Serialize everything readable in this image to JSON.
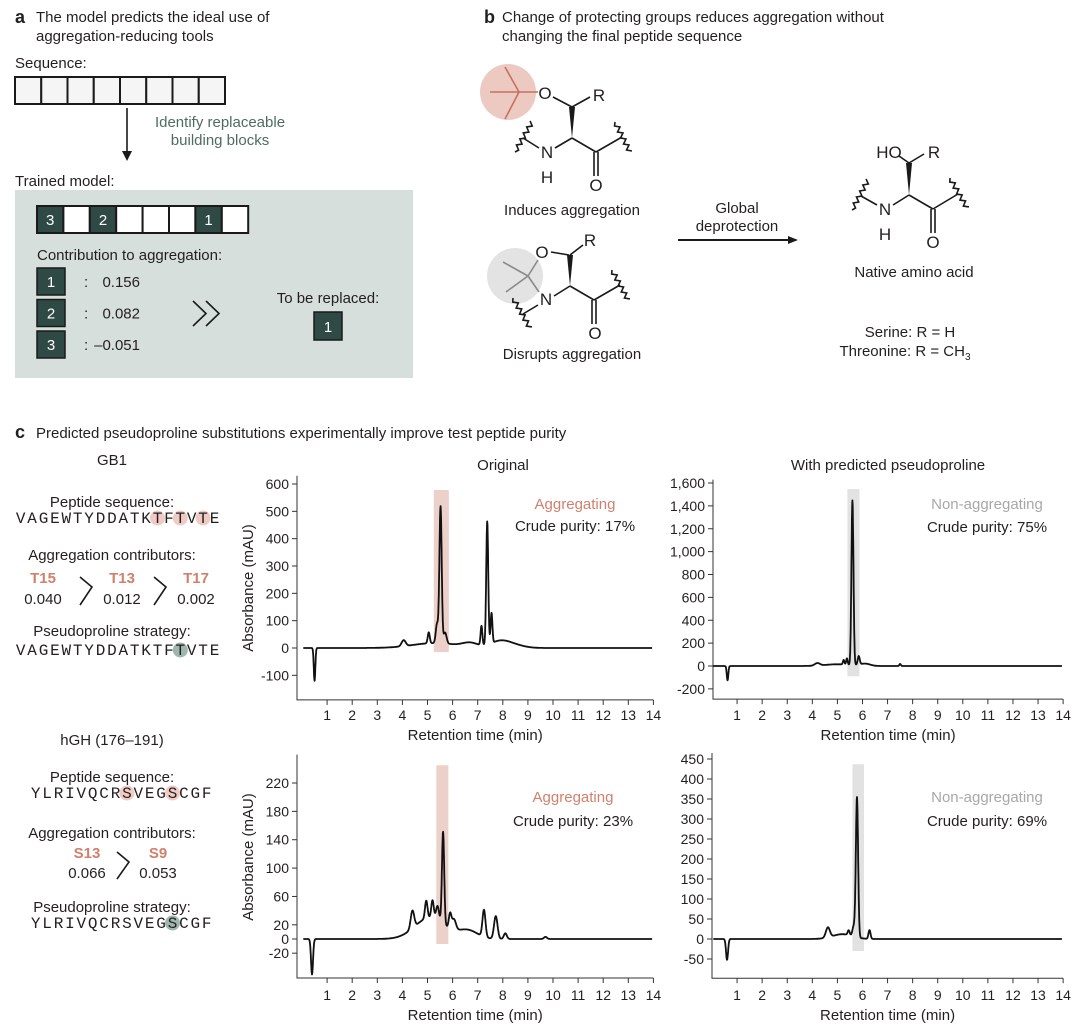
{
  "panel_a": {
    "letter": "a",
    "title_line1": "The model predicts the ideal use of",
    "title_line2": "aggregation-reducing tools",
    "sequence_label": "Sequence:",
    "arrow_label_line1": "Identify replaceable",
    "arrow_label_line2": "building blocks",
    "trained_label": "Trained model:",
    "trained_boxes": [
      "3",
      "",
      "2",
      "",
      "",
      "",
      "1",
      ""
    ],
    "contribution_label": "Contribution to aggregation:",
    "contributions": [
      {
        "id": "1",
        "value": "0.156"
      },
      {
        "id": "2",
        "value": "0.082"
      },
      {
        "id": "3",
        "value": "–0.051"
      }
    ],
    "colon": ":",
    "replace_label": "To be replaced:",
    "replace_id": "1",
    "box_color": "#2f4a44",
    "panel_bg": "#d7dfdd"
  },
  "panel_b": {
    "letter": "b",
    "title_line1": "Change of protecting groups reduces aggregation without",
    "title_line2": "changing the final peptide sequence",
    "induces_label": "Induces aggregation",
    "disrupts_label": "Disrupts aggregation",
    "arrow_line1": "Global",
    "arrow_line2": "deprotection",
    "native_label": "Native amino acid",
    "serine": "Serine: R = H",
    "threonine": "Threonine: R = CH",
    "threonine_sub": "3",
    "atoms": {
      "O": "O",
      "R": "R",
      "N": "N",
      "H": "H",
      "HO": "HO"
    },
    "colors": {
      "tbu": "#eccac2",
      "pseudoproline": "#e3e3e3"
    }
  },
  "panel_c": {
    "letter": "c",
    "title": "Predicted pseudoproline substitutions experimentally improve test peptide purity",
    "col_original": "Original",
    "col_predicted": "With predicted pseudoproline",
    "peptides": [
      {
        "name": "GB1",
        "seq_label": "Peptide sequence:",
        "sequence": "VAGEWTYDDATKTFTVTE",
        "highlight_positions": [
          13,
          15,
          17
        ],
        "contrib_label": "Aggregation contributors:",
        "contributors": [
          {
            "residue": "T15",
            "value": "0.040"
          },
          {
            "residue": "T13",
            "value": "0.012"
          },
          {
            "residue": "T17",
            "value": "0.002"
          }
        ],
        "strategy_label": "Pseudoproline strategy:",
        "strategy_sequence": "VAGEWTYDDATKTFTVTE",
        "strategy_positions": [
          15
        ]
      },
      {
        "name": "hGH (176–191)",
        "seq_label": "Peptide sequence:",
        "sequence": "YLRIVQCRSVEGSCGF",
        "highlight_positions": [
          9,
          13
        ],
        "contrib_label": "Aggregation contributors:",
        "contributors": [
          {
            "residue": "S13",
            "value": "0.066"
          },
          {
            "residue": "S9",
            "value": "0.053"
          }
        ],
        "strategy_label": "Pseudoproline strategy:",
        "strategy_sequence": "YLRIVQCRSVEGSCGF",
        "strategy_positions": [
          13
        ]
      }
    ],
    "colors": {
      "aggregating": "#d0806c",
      "non_aggregating": "#a8a8a8",
      "highlight_pink": "#efcbc3",
      "highlight_green": "#9fb5ad",
      "band_pink": "#ecd0ca",
      "band_gray": "#e2e2e2"
    }
  },
  "chart_data": [
    {
      "type": "line",
      "title": "Original",
      "peptide": "GB1",
      "xlabel": "Retention time (min)",
      "ylabel": "Absorbance (mAU)",
      "xlim": [
        0,
        14
      ],
      "ylim": [
        -190,
        630
      ],
      "xticks": [
        "1",
        "2",
        "3",
        "4",
        "5",
        "6",
        "7",
        "8",
        "9",
        "10",
        "11",
        "12",
        "13",
        "14"
      ],
      "yticks": [
        -100,
        0,
        100,
        200,
        300,
        400,
        500,
        600
      ],
      "ytick_labels": [
        "-100",
        "0",
        "100",
        "200",
        "300",
        "400",
        "500",
        "600"
      ],
      "status": "Aggregating",
      "purity": "Crude purity: 17%",
      "highlight": {
        "x": [
          5.25,
          5.85
        ],
        "y": [
          -15,
          578
        ],
        "color": "pink"
      },
      "peaks_rt_height_width": [
        [
          0.5,
          -120,
          0.03
        ],
        [
          4.05,
          22,
          0.08
        ],
        [
          5.3,
          18,
          0.9
        ],
        [
          5.05,
          40,
          0.04
        ],
        [
          5.38,
          70,
          0.05
        ],
        [
          5.52,
          500,
          0.045
        ],
        [
          5.7,
          40,
          0.06
        ],
        [
          6.7,
          15,
          0.3
        ],
        [
          7.15,
          70,
          0.035
        ],
        [
          7.38,
          450,
          0.04
        ],
        [
          7.55,
          110,
          0.035
        ],
        [
          7.9,
          25,
          0.4
        ],
        [
          8.5,
          8,
          0.4
        ]
      ]
    },
    {
      "type": "line",
      "title": "With predicted pseudoproline",
      "peptide": "GB1",
      "xlabel": "Retention time (min)",
      "ylabel": "",
      "xlim": [
        0,
        14
      ],
      "ylim": [
        -290,
        1630
      ],
      "xticks": [
        "1",
        "2",
        "3",
        "4",
        "5",
        "6",
        "7",
        "8",
        "9",
        "10",
        "11",
        "12",
        "13",
        "14"
      ],
      "yticks": [
        -200,
        0,
        200,
        400,
        600,
        800,
        1000,
        1200,
        1400,
        1600
      ],
      "ytick_labels": [
        "-200",
        "0",
        "200",
        "400",
        "600",
        "800",
        "1,000",
        "1,200",
        "1,400",
        "1,600"
      ],
      "status": "Non-aggregating",
      "purity": "Crude purity: 75%",
      "highlight": {
        "x": [
          5.4,
          5.88
        ],
        "y": [
          -90,
          1547
        ],
        "color": "gray"
      },
      "peaks_rt_height_width": [
        [
          0.62,
          -125,
          0.03
        ],
        [
          4.2,
          22,
          0.1
        ],
        [
          5.0,
          15,
          0.5
        ],
        [
          5.25,
          40,
          0.03
        ],
        [
          5.38,
          55,
          0.03
        ],
        [
          5.6,
          1440,
          0.04
        ],
        [
          5.85,
          75,
          0.04
        ],
        [
          6.1,
          20,
          0.2
        ],
        [
          7.5,
          18,
          0.03
        ]
      ]
    },
    {
      "type": "line",
      "title": "",
      "peptide": "hGH (176–191)",
      "xlabel": "Retention time (min)",
      "ylabel": "Absorbance (mAU)",
      "xlim": [
        0,
        14
      ],
      "ylim": [
        -55,
        260
      ],
      "xticks": [
        "1",
        "2",
        "3",
        "4",
        "5",
        "6",
        "7",
        "8",
        "9",
        "10",
        "11",
        "12",
        "13",
        "14"
      ],
      "yticks": [
        -20,
        0,
        20,
        60,
        100,
        140,
        180,
        220
      ],
      "ytick_labels": [
        "-20",
        "0",
        "20",
        "60",
        "100",
        "140",
        "180",
        "220"
      ],
      "status": "Aggregating",
      "purity": "Crude purity: 23%",
      "highlight": {
        "x": [
          5.35,
          5.83
        ],
        "y": [
          -7,
          245
        ],
        "color": "pink"
      },
      "peaks_rt_height_width": [
        [
          0.4,
          -50,
          0.04
        ],
        [
          4.4,
          25,
          0.07
        ],
        [
          5.1,
          30,
          0.6
        ],
        [
          4.95,
          25,
          0.05
        ],
        [
          5.2,
          25,
          0.05
        ],
        [
          5.4,
          20,
          0.06
        ],
        [
          5.62,
          130,
          0.045
        ],
        [
          5.9,
          20,
          0.05
        ],
        [
          6.05,
          15,
          0.08
        ],
        [
          6.6,
          12,
          0.4
        ],
        [
          7.25,
          38,
          0.06
        ],
        [
          7.72,
          32,
          0.07
        ],
        [
          8.1,
          8,
          0.06
        ],
        [
          9.7,
          3,
          0.06
        ]
      ]
    },
    {
      "type": "line",
      "title": "",
      "peptide": "hGH (176–191)",
      "xlabel": "Retention time (min)",
      "ylabel": "",
      "xlim": [
        0,
        14
      ],
      "ylim": [
        -98,
        465
      ],
      "xticks": [
        "1",
        "2",
        "3",
        "4",
        "5",
        "6",
        "7",
        "8",
        "9",
        "10",
        "11",
        "12",
        "13",
        "14"
      ],
      "yticks": [
        -50,
        0,
        50,
        100,
        150,
        200,
        250,
        300,
        350,
        400,
        450
      ],
      "ytick_labels": [
        "-50",
        "0",
        "50",
        "100",
        "150",
        "200",
        "250",
        "300",
        "350",
        "400",
        "450"
      ],
      "status": "Non-aggregating",
      "purity": "Crude purity: 69%",
      "highlight": {
        "x": [
          5.6,
          6.06
        ],
        "y": [
          -30,
          437
        ],
        "color": "gray"
      },
      "peaks_rt_height_width": [
        [
          0.6,
          -52,
          0.04
        ],
        [
          4.62,
          25,
          0.08
        ],
        [
          5.2,
          12,
          0.4
        ],
        [
          5.45,
          12,
          0.04
        ],
        [
          5.65,
          25,
          0.05
        ],
        [
          5.78,
          350,
          0.045
        ],
        [
          6.28,
          22,
          0.04
        ]
      ]
    }
  ]
}
